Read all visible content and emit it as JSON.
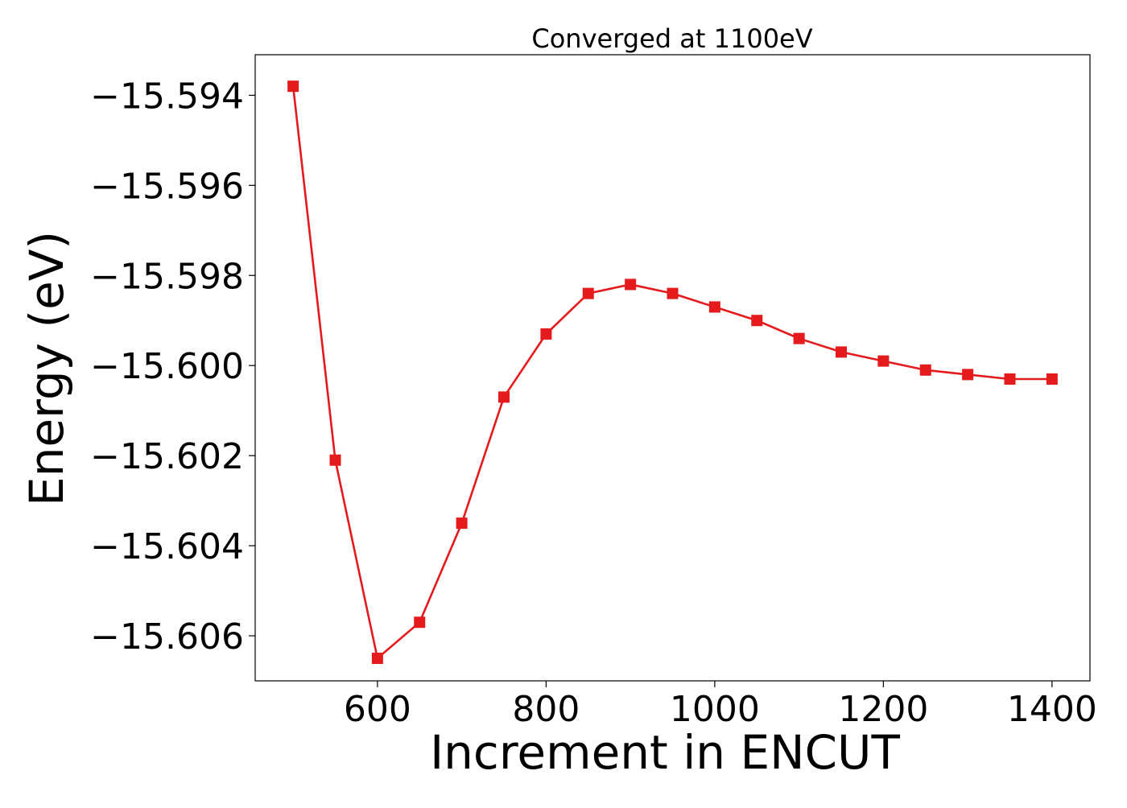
{
  "chart_data": {
    "type": "line",
    "title": "Converged at 1100eV",
    "xlabel": "Increment in ENCUT",
    "ylabel": "Energy (eV)",
    "xlim": [
      455,
      1445
    ],
    "ylim": [
      -15.607,
      -15.5931
    ],
    "xticks": [
      600,
      800,
      1000,
      1200,
      1400
    ],
    "xtick_labels": [
      "600",
      "800",
      "1000",
      "1200",
      "1400"
    ],
    "yticks": [
      -15.594,
      -15.596,
      -15.598,
      -15.6,
      -15.602,
      -15.604,
      -15.606
    ],
    "ytick_labels": [
      "−15.594",
      "−15.596",
      "−15.598",
      "−15.600",
      "−15.602",
      "−15.604",
      "−15.606"
    ],
    "grid": false,
    "legend": false,
    "series": [
      {
        "color": "#e41a1c",
        "marker": "square",
        "x": [
          500,
          550,
          600,
          650,
          700,
          750,
          800,
          850,
          900,
          950,
          1000,
          1050,
          1100,
          1150,
          1200,
          1250,
          1300,
          1350,
          1400
        ],
        "y": [
          -15.5938,
          -15.6021,
          -15.6065,
          -15.6057,
          -15.6035,
          -15.6007,
          -15.5993,
          -15.5984,
          -15.5982,
          -15.5984,
          -15.5987,
          -15.599,
          -15.5994,
          -15.5997,
          -15.5999,
          -15.6001,
          -15.6002,
          -15.6003,
          -15.6003
        ]
      }
    ]
  }
}
